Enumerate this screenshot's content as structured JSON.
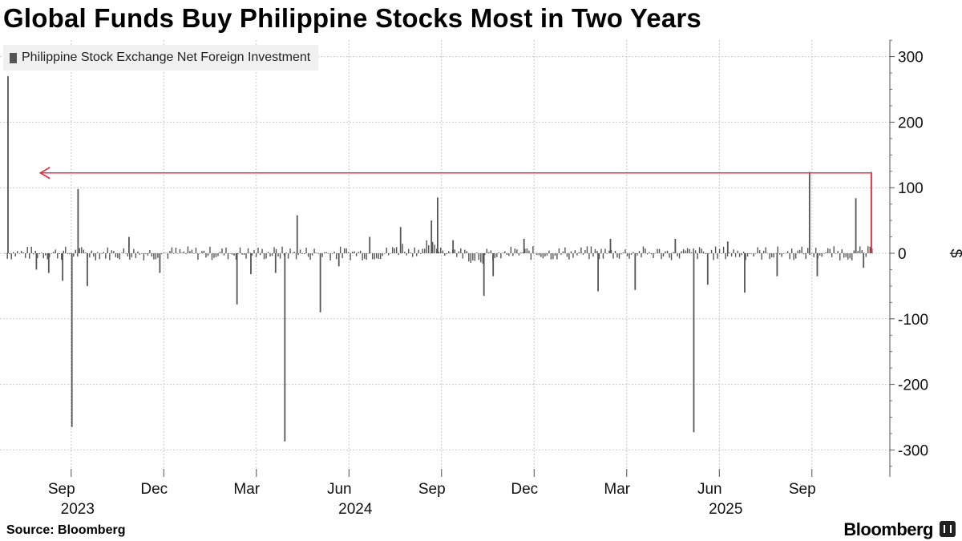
{
  "chart_data": {
    "type": "bar",
    "title": "Global Funds Buy Philippine Stocks Most in Two Years",
    "ylabel": "$",
    "ylim": [
      -330,
      330
    ],
    "yticks": [
      300,
      200,
      100,
      0,
      -100,
      -200,
      -300
    ],
    "ytick_labels": [
      "300",
      "200",
      "100",
      "0",
      "-100",
      "-200",
      "-300"
    ],
    "x_range_months": [
      0,
      28.6
    ],
    "x_ticks": [
      {
        "label": "Sep",
        "month": 2
      },
      {
        "label": "Dec",
        "month": 5
      },
      {
        "label": "Mar",
        "month": 8
      },
      {
        "label": "Jun",
        "month": 11
      },
      {
        "label": "Sep",
        "month": 14
      },
      {
        "label": "Dec",
        "month": 17
      },
      {
        "label": "Mar",
        "month": 20
      },
      {
        "label": "Jun",
        "month": 23
      },
      {
        "label": "Sep",
        "month": 26
      }
    ],
    "year_labels": [
      {
        "label": "2023",
        "month": 2
      },
      {
        "label": "2024",
        "month": 11
      },
      {
        "label": "2025",
        "month": 23
      }
    ],
    "grid": true,
    "legend": [
      "Philippine Stock Exchange Net Foreign Investment"
    ],
    "legend_position": "top-left",
    "series": [
      {
        "name": "Philippine Stock Exchange Net Foreign Investment",
        "color": "#555555",
        "spikes": [
          {
            "month": 0.08,
            "value": 270
          },
          {
            "month": 1.0,
            "value": -25
          },
          {
            "month": 1.4,
            "value": -30
          },
          {
            "month": 1.85,
            "value": -42
          },
          {
            "month": 2.15,
            "value": -265
          },
          {
            "month": 2.35,
            "value": 98
          },
          {
            "month": 2.65,
            "value": -50
          },
          {
            "month": 4.0,
            "value": 25
          },
          {
            "month": 5.0,
            "value": -30
          },
          {
            "month": 7.5,
            "value": -78
          },
          {
            "month": 7.95,
            "value": -32
          },
          {
            "month": 8.75,
            "value": -30
          },
          {
            "month": 9.05,
            "value": -287
          },
          {
            "month": 9.45,
            "value": 58
          },
          {
            "month": 10.2,
            "value": -90
          },
          {
            "month": 10.8,
            "value": -20
          },
          {
            "month": 11.8,
            "value": 25
          },
          {
            "month": 12.8,
            "value": 40
          },
          {
            "month": 13.8,
            "value": 50
          },
          {
            "month": 14.0,
            "value": 85
          },
          {
            "month": 14.5,
            "value": 20
          },
          {
            "month": 15.5,
            "value": -65
          },
          {
            "month": 15.8,
            "value": -35
          },
          {
            "month": 16.8,
            "value": 22
          },
          {
            "month": 19.2,
            "value": -58
          },
          {
            "month": 19.6,
            "value": 22
          },
          {
            "month": 20.4,
            "value": -56
          },
          {
            "month": 21.7,
            "value": 22
          },
          {
            "month": 22.3,
            "value": -273
          },
          {
            "month": 22.75,
            "value": -48
          },
          {
            "month": 23.4,
            "value": 18
          },
          {
            "month": 23.95,
            "value": -60
          },
          {
            "month": 25.0,
            "value": -35
          },
          {
            "month": 26.05,
            "value": 124
          },
          {
            "month": 26.3,
            "value": -35
          },
          {
            "month": 27.55,
            "value": 84
          },
          {
            "month": 27.8,
            "value": -22
          },
          {
            "month": 28.05,
            "value": 124
          }
        ]
      }
    ],
    "annotations": [
      {
        "type": "arrow",
        "from_month": 28.05,
        "to_month": 1.15,
        "value": 125,
        "color": "#e8303f"
      }
    ]
  },
  "title": "Global Funds Buy Philippine Stocks Most in Two Years",
  "legend_label": "Philippine Stock Exchange Net Foreign Investment",
  "source": "Source: Bloomberg",
  "brand": "Bloomberg"
}
